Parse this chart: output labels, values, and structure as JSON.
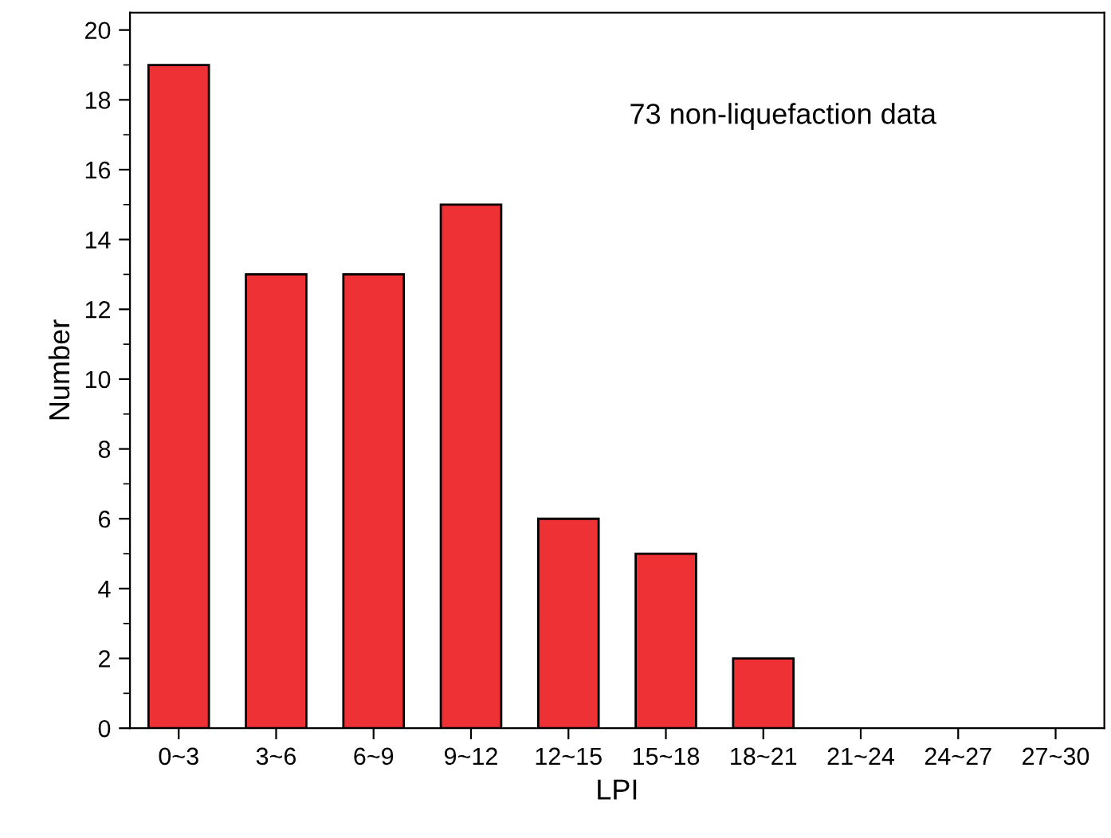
{
  "chart_data": {
    "type": "bar",
    "xlabel": "LPI",
    "ylabel": "Number",
    "categories": [
      "0~3",
      "3~6",
      "6~9",
      "9~12",
      "12~15",
      "15~18",
      "18~21",
      "21~24",
      "24~27",
      "27~30"
    ],
    "values": [
      19,
      13,
      13,
      15,
      6,
      5,
      2,
      0,
      0,
      0
    ],
    "color": "#ee3135",
    "ylim": [
      0,
      20.5
    ],
    "yticks": [
      0,
      2,
      4,
      6,
      8,
      10,
      12,
      14,
      16,
      18,
      20
    ],
    "annotations": [
      "73 non-liquefaction data"
    ],
    "grid": false,
    "legend": false
  }
}
